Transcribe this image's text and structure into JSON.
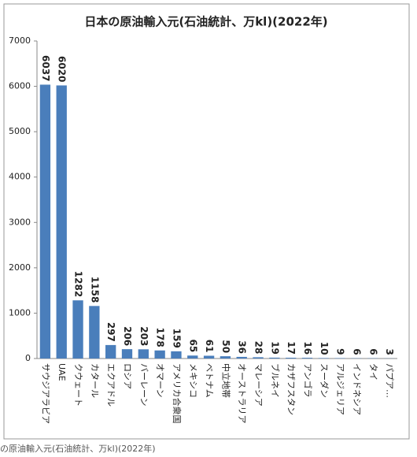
{
  "chart_data": {
    "type": "bar",
    "title": "日本の原油輸入元(石油統計、万kl)(2022年)",
    "caption": "の原油輸入元(石油統計、万kl)(2022年)",
    "categories": [
      "サウジアラビア",
      "UAE",
      "クウェート",
      "カタール",
      "エクアドル",
      "ロシア",
      "バーレーン",
      "オマーン",
      "アメリカ合衆国",
      "メキシコ",
      "ベトナム",
      "中立地帯",
      "オーストラリア",
      "マレーシア",
      "ブルネイ",
      "カザフスタン",
      "アンゴラ",
      "スーダン",
      "アルジェリア",
      "インドネシア",
      "タイ",
      "パプア…"
    ],
    "values": [
      6037,
      6020,
      1282,
      1158,
      297,
      206,
      203,
      178,
      159,
      65,
      61,
      50,
      36,
      28,
      19,
      17,
      16,
      10,
      9,
      6,
      6,
      3
    ],
    "color": "#4a7ebb",
    "ylim": [
      0,
      7000
    ],
    "yticks": [
      0,
      1000,
      2000,
      3000,
      4000,
      5000,
      6000,
      7000
    ],
    "grid": false
  }
}
